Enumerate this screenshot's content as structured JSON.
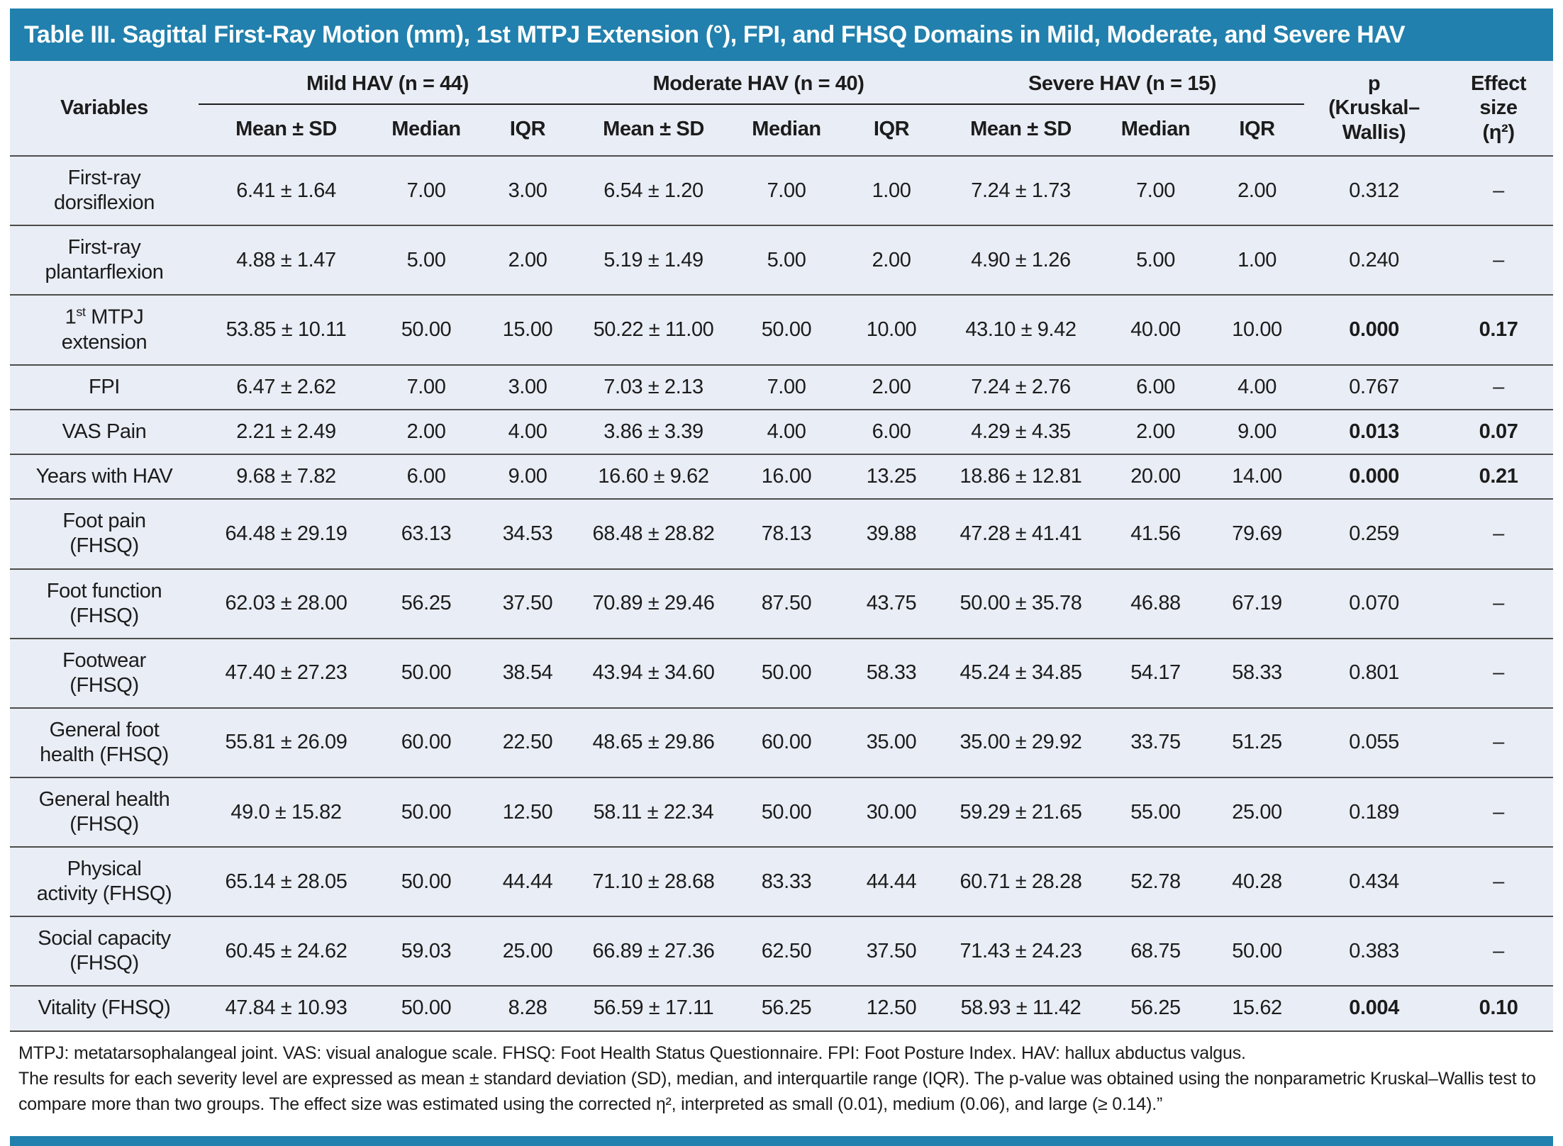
{
  "title": "Table III. Sagittal First-Ray Motion (mm), 1st MTPJ Extension (°), FPI, and FHSQ Domains in Mild, Moderate, and Severe HAV",
  "colors": {
    "accent_blue": "#2180ad",
    "table_background": "#e9edf5",
    "text": "#1c1c1c"
  },
  "table": {
    "variables_header": "Variables",
    "groups": [
      {
        "label": "Mild HAV (n = 44)"
      },
      {
        "label": "Moderate HAV (n = 40)"
      },
      {
        "label": "Severe HAV (n = 15)"
      }
    ],
    "sub_headers": [
      "Mean ± SD",
      "Median",
      "IQR"
    ],
    "p_header": "p\n(Kruskal–\nWallis)",
    "effect_header": "Effect\nsize\n(η²)",
    "rows": [
      {
        "variable": "First-ray\ndorsiflexion",
        "mild": [
          "6.41 ± 1.64",
          "7.00",
          "3.00"
        ],
        "moderate": [
          "6.54 ± 1.20",
          "7.00",
          "1.00"
        ],
        "severe": [
          "7.24 ± 1.73",
          "7.00",
          "2.00"
        ],
        "p": "0.312",
        "effect": "–",
        "sig": false
      },
      {
        "variable": "First-ray\nplantarflexion",
        "mild": [
          "4.88 ± 1.47",
          "5.00",
          "2.00"
        ],
        "moderate": [
          "5.19 ± 1.49",
          "5.00",
          "2.00"
        ],
        "severe": [
          "4.90 ± 1.26",
          "5.00",
          "1.00"
        ],
        "p": "0.240",
        "effect": "–",
        "sig": false
      },
      {
        "variable": "1st MTPJ\nextension",
        "mild": [
          "53.85 ± 10.11",
          "50.00",
          "15.00"
        ],
        "moderate": [
          "50.22 ± 11.00",
          "50.00",
          "10.00"
        ],
        "severe": [
          "43.10 ± 9.42",
          "40.00",
          "10.00"
        ],
        "p": "0.000",
        "effect": "0.17",
        "sig": true
      },
      {
        "variable": "FPI",
        "mild": [
          "6.47 ± 2.62",
          "7.00",
          "3.00"
        ],
        "moderate": [
          "7.03 ± 2.13",
          "7.00",
          "2.00"
        ],
        "severe": [
          "7.24 ± 2.76",
          "6.00",
          "4.00"
        ],
        "p": "0.767",
        "effect": "–",
        "sig": false
      },
      {
        "variable": "VAS Pain",
        "mild": [
          "2.21 ± 2.49",
          "2.00",
          "4.00"
        ],
        "moderate": [
          "3.86 ± 3.39",
          "4.00",
          "6.00"
        ],
        "severe": [
          "4.29 ± 4.35",
          "2.00",
          "9.00"
        ],
        "p": "0.013",
        "effect": "0.07",
        "sig": true
      },
      {
        "variable": "Years with HAV",
        "mild": [
          "9.68 ± 7.82",
          "6.00",
          "9.00"
        ],
        "moderate": [
          "16.60 ± 9.62",
          "16.00",
          "13.25"
        ],
        "severe": [
          "18.86 ± 12.81",
          "20.00",
          "14.00"
        ],
        "p": "0.000",
        "effect": "0.21",
        "sig": true
      },
      {
        "variable": "Foot pain\n(FHSQ)",
        "mild": [
          "64.48 ± 29.19",
          "63.13",
          "34.53"
        ],
        "moderate": [
          "68.48 ± 28.82",
          "78.13",
          "39.88"
        ],
        "severe": [
          "47.28 ± 41.41",
          "41.56",
          "79.69"
        ],
        "p": "0.259",
        "effect": "–",
        "sig": false
      },
      {
        "variable": "Foot function\n(FHSQ)",
        "mild": [
          "62.03 ± 28.00",
          "56.25",
          "37.50"
        ],
        "moderate": [
          "70.89 ± 29.46",
          "87.50",
          "43.75"
        ],
        "severe": [
          "50.00 ± 35.78",
          "46.88",
          "67.19"
        ],
        "p": "0.070",
        "effect": "–",
        "sig": false
      },
      {
        "variable": "Footwear\n(FHSQ)",
        "mild": [
          "47.40 ± 27.23",
          "50.00",
          "38.54"
        ],
        "moderate": [
          "43.94 ± 34.60",
          "50.00",
          "58.33"
        ],
        "severe": [
          "45.24 ± 34.85",
          "54.17",
          "58.33"
        ],
        "p": "0.801",
        "effect": "–",
        "sig": false
      },
      {
        "variable": "General foot\nhealth (FHSQ)",
        "mild": [
          "55.81 ± 26.09",
          "60.00",
          "22.50"
        ],
        "moderate": [
          "48.65 ± 29.86",
          "60.00",
          "35.00"
        ],
        "severe": [
          "35.00 ± 29.92",
          "33.75",
          "51.25"
        ],
        "p": "0.055",
        "effect": "–",
        "sig": false
      },
      {
        "variable": "General health\n(FHSQ)",
        "mild": [
          "49.0 ± 15.82",
          "50.00",
          "12.50"
        ],
        "moderate": [
          "58.11 ± 22.34",
          "50.00",
          "30.00"
        ],
        "severe": [
          "59.29 ± 21.65",
          "55.00",
          "25.00"
        ],
        "p": "0.189",
        "effect": "–",
        "sig": false
      },
      {
        "variable": "Physical\nactivity (FHSQ)",
        "mild": [
          "65.14 ± 28.05",
          "50.00",
          "44.44"
        ],
        "moderate": [
          "71.10 ± 28.68",
          "83.33",
          "44.44"
        ],
        "severe": [
          "60.71 ± 28.28",
          "52.78",
          "40.28"
        ],
        "p": "0.434",
        "effect": "–",
        "sig": false
      },
      {
        "variable": "Social capacity\n(FHSQ)",
        "mild": [
          "60.45 ± 24.62",
          "59.03",
          "25.00"
        ],
        "moderate": [
          "66.89 ± 27.36",
          "62.50",
          "37.50"
        ],
        "severe": [
          "71.43 ± 24.23",
          "68.75",
          "50.00"
        ],
        "p": "0.383",
        "effect": "–",
        "sig": false
      },
      {
        "variable": "Vitality (FHSQ)",
        "mild": [
          "47.84 ± 10.93",
          "50.00",
          "8.28"
        ],
        "moderate": [
          "56.59 ± 17.11",
          "56.25",
          "12.50"
        ],
        "severe": [
          "58.93 ± 11.42",
          "56.25",
          "15.62"
        ],
        "p": "0.004",
        "effect": "0.10",
        "sig": true
      }
    ]
  },
  "footnotes": [
    "MTPJ: metatarsophalangeal joint. VAS: visual analogue scale. FHSQ: Foot Health Status Questionnaire. FPI: Foot Posture Index. HAV: hallux abductus valgus.",
    "The results for each severity level are expressed as mean ± standard deviation (SD), median, and interquartile range (IQR). The p-value was obtained using the nonparametric Kruskal–Wallis test to compare more than two groups. The effect size was estimated using the corrected η², interpreted as small (0.01), medium (0.06), and large (≥ 0.14).”"
  ]
}
